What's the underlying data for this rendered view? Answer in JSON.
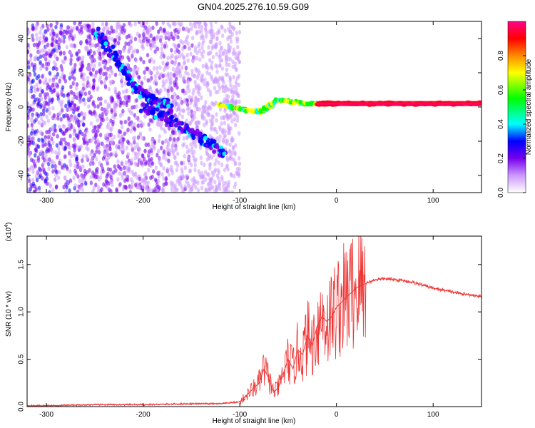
{
  "title": "GN04.2025.276.10.59.G09",
  "chart_data": [
    {
      "type": "heatmap",
      "xlabel": "Height of straight line (km)",
      "ylabel": "Frequency (Hz)",
      "xlim": [
        -320,
        150
      ],
      "ylim": [
        -50,
        50
      ],
      "xticks": [
        -300,
        -200,
        -100,
        0,
        100
      ],
      "yticks": [
        -40,
        -20,
        0,
        20,
        40
      ],
      "colorbar": {
        "label": "Normalized spectral amplitude",
        "range": [
          0,
          1
        ],
        "ticks": [
          "0.0",
          "0.2",
          "0.4",
          "0.6",
          "0.8"
        ],
        "colors": [
          "#ffffff",
          "#cc99ff",
          "#7700ee",
          "#0000ff",
          "#00ffff",
          "#00ff00",
          "#ffff00",
          "#ff8800",
          "#ff0000",
          "#ff0088"
        ]
      },
      "features": [
        {
          "name": "descending trace",
          "points": [
            [
              -250,
              45
            ],
            [
              -230,
              30
            ],
            [
              -210,
              12
            ],
            [
              -190,
              4
            ],
            [
              -170,
              0
            ]
          ]
        },
        {
          "name": "lower branch",
          "points": [
            [
              -200,
              0
            ],
            [
              -170,
              -8
            ],
            [
              -140,
              -18
            ],
            [
              -115,
              -28
            ]
          ]
        },
        {
          "name": "center line",
          "points": [
            [
              -120,
              1
            ],
            [
              -80,
              -3
            ],
            [
              -60,
              4
            ],
            [
              -30,
              2
            ],
            [
              0,
              2
            ],
            [
              150,
              2
            ]
          ]
        }
      ]
    },
    {
      "type": "line",
      "xlabel": "Height of straight line (km)",
      "ylabel": "SNR (10 * v/v)",
      "scale_note": "(x10",
      "scale_exp": "4",
      "xlim": [
        -320,
        150
      ],
      "ylim": [
        0,
        1.8
      ],
      "xticks": [
        -300,
        -200,
        -100,
        0,
        100
      ],
      "yticks": [
        0,
        0.5,
        1,
        1.5
      ],
      "color": "#ee3333",
      "x": [
        -320,
        -300,
        -250,
        -200,
        -150,
        -120,
        -100,
        -95,
        -90,
        -85,
        -80,
        -75,
        -70,
        -65,
        -60,
        -55,
        -50,
        -45,
        -40,
        -35,
        -30,
        -25,
        -20,
        -15,
        -10,
        -5,
        0,
        5,
        10,
        15,
        20,
        30,
        40,
        50,
        60,
        70,
        80,
        90,
        100,
        110,
        120,
        130,
        140,
        150
      ],
      "y": [
        0.01,
        0.01,
        0.02,
        0.02,
        0.03,
        0.03,
        0.05,
        0.1,
        0.15,
        0.2,
        0.25,
        0.4,
        0.3,
        0.15,
        0.2,
        0.35,
        0.5,
        0.4,
        0.6,
        0.55,
        0.75,
        0.65,
        0.85,
        0.95,
        0.9,
        0.95,
        1.05,
        1.1,
        1.15,
        1.2,
        1.25,
        1.3,
        1.34,
        1.35,
        1.34,
        1.33,
        1.31,
        1.28,
        1.25,
        1.23,
        1.21,
        1.19,
        1.18,
        1.16
      ]
    }
  ]
}
